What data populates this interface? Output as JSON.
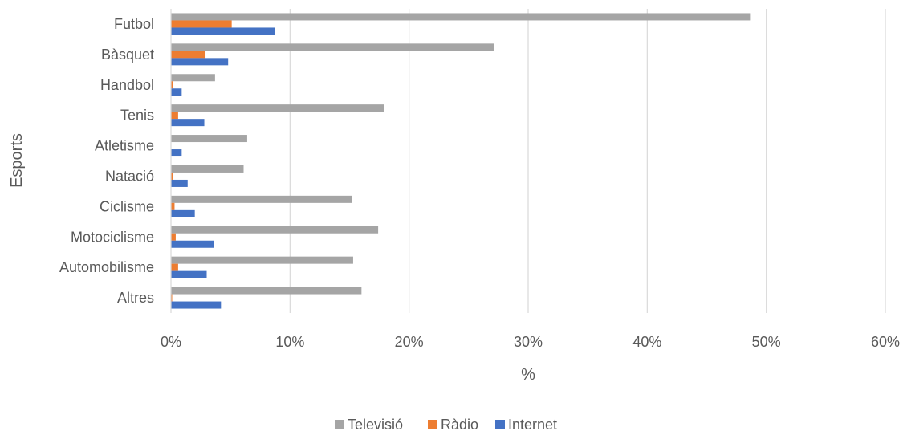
{
  "chart_data": {
    "type": "bar",
    "orientation": "horizontal",
    "categories": [
      "Futbol",
      "Bàsquet",
      "Handbol",
      "Tenis",
      "Atletisme",
      "Natació",
      "Ciclisme",
      "Motociclisme",
      "Automobilisme",
      "Altres"
    ],
    "series": [
      {
        "name": "Televisió",
        "color": "#a5a5a5",
        "values": [
          48.7,
          27.1,
          3.7,
          17.9,
          6.4,
          6.1,
          15.2,
          17.4,
          15.3,
          16.0
        ]
      },
      {
        "name": "Ràdio",
        "color": "#ed7d31",
        "values": [
          5.1,
          2.9,
          0.15,
          0.6,
          0.0,
          0.15,
          0.3,
          0.4,
          0.6,
          0.1
        ]
      },
      {
        "name": "Internet",
        "color": "#4472c4",
        "values": [
          8.7,
          4.8,
          0.9,
          2.8,
          0.9,
          1.4,
          2.0,
          3.6,
          3.0,
          4.2
        ]
      }
    ],
    "xlabel": "%",
    "ylabel": "Esports",
    "xlim": [
      0,
      60
    ],
    "xticks": [
      0,
      10,
      20,
      30,
      40,
      50,
      60
    ],
    "xtick_labels": [
      "0%",
      "10%",
      "20%",
      "30%",
      "40%",
      "50%",
      "60%"
    ],
    "grid": "vertical",
    "legend_position": "bottom"
  }
}
